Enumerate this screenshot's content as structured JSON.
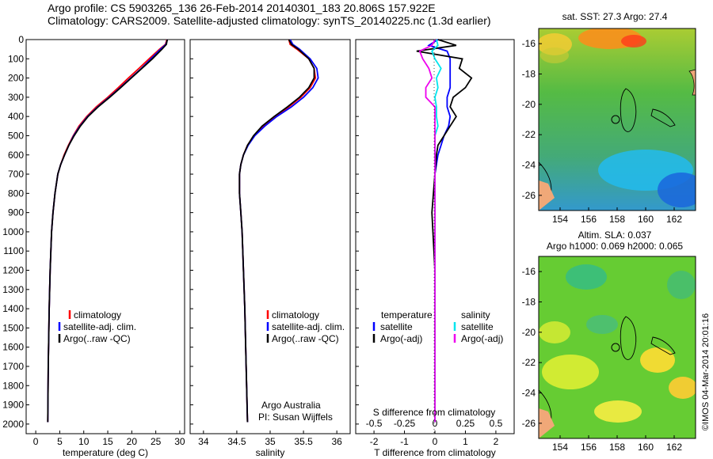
{
  "header": {
    "line1": "Argo profile: CS 5903265_136 26-Feb-2014 20140301_183 20.806S 157.922E",
    "line2": "Climatology: CARS2009. Satellite-adjusted climatology: synTS_20140225.nc (1.3d earlier)"
  },
  "chart_data": [
    {
      "type": "line",
      "id": "temperature_profile",
      "xlabel": "temperature (deg C)",
      "ylabel": "",
      "xlim": [
        -2,
        31
      ],
      "ylim": [
        2050,
        0
      ],
      "xticks": [
        "0",
        "5",
        "10",
        "15",
        "20",
        "25",
        "30"
      ],
      "yticks": [
        "0",
        "100",
        "200",
        "300",
        "400",
        "500",
        "600",
        "700",
        "800",
        "900",
        "1000",
        "1100",
        "1200",
        "1300",
        "1400",
        "1500",
        "1600",
        "1700",
        "1800",
        "1900",
        "2000"
      ],
      "legend": [
        "climatology",
        "satellite-adj. clim.",
        "Argo(..raw -QC)"
      ],
      "series": [
        {
          "name": "climatology",
          "color": "#ff0000",
          "x": [
            27.3,
            27.0,
            25.8,
            23.6,
            21.5,
            19.3,
            17.2,
            15.0,
            12.6,
            10.6,
            9.0,
            7.8,
            6.8,
            5.9,
            5.2,
            4.6,
            4.0,
            3.6,
            3.3,
            3.0,
            2.8,
            2.6,
            2.5
          ],
          "y": [
            0,
            25,
            50,
            100,
            150,
            200,
            250,
            300,
            350,
            400,
            450,
            500,
            550,
            600,
            650,
            700,
            800,
            900,
            1000,
            1200,
            1400,
            1700,
            1990
          ]
        },
        {
          "name": "satellite-adj. clim.",
          "color": "#0000ff",
          "x": [
            27.4,
            27.1,
            26.0,
            24.0,
            22.0,
            19.8,
            17.6,
            15.3,
            12.9,
            10.8,
            9.2,
            7.9,
            6.9,
            6.0,
            5.2,
            4.6,
            4.0,
            3.6,
            3.3,
            3.0,
            2.8,
            2.6,
            2.5
          ],
          "y": [
            0,
            25,
            50,
            100,
            150,
            200,
            250,
            300,
            350,
            400,
            450,
            500,
            550,
            600,
            650,
            700,
            800,
            900,
            1000,
            1200,
            1400,
            1700,
            1990
          ]
        },
        {
          "name": "Argo(..raw -QC)",
          "color": "#000000",
          "x": [
            27.4,
            27.2,
            26.3,
            24.3,
            22.1,
            19.9,
            17.7,
            15.4,
            13.0,
            10.9,
            9.3,
            8.0,
            6.9,
            6.0,
            5.2,
            4.6,
            4.0,
            3.6,
            3.3,
            3.0,
            2.8,
            2.6,
            2.5
          ],
          "y": [
            0,
            25,
            50,
            100,
            150,
            200,
            250,
            300,
            350,
            400,
            450,
            500,
            550,
            600,
            650,
            700,
            800,
            900,
            1000,
            1200,
            1400,
            1700,
            1990
          ]
        }
      ]
    },
    {
      "type": "line",
      "id": "salinity_profile",
      "xlabel": "salinity",
      "xlim": [
        33.8,
        36.2
      ],
      "ylim": [
        2050,
        0
      ],
      "xticks": [
        "34",
        "34.5",
        "35",
        "35.5",
        "36"
      ],
      "legend": [
        "climatology",
        "satellite-adj. clim.",
        "Argo(..raw -QC)"
      ],
      "annotation": [
        "Argo Australia",
        "PI: Susan Wijffels"
      ],
      "series": [
        {
          "name": "climatology",
          "color": "#ff0000",
          "x": [
            35.28,
            35.3,
            35.4,
            35.58,
            35.66,
            35.68,
            35.6,
            35.46,
            35.28,
            35.08,
            34.9,
            34.76,
            34.66,
            34.6,
            34.56,
            34.54,
            34.54,
            34.56,
            34.58,
            34.6,
            34.62,
            34.64,
            34.66
          ],
          "y": [
            0,
            25,
            50,
            100,
            150,
            200,
            250,
            300,
            350,
            400,
            450,
            500,
            550,
            600,
            650,
            700,
            800,
            900,
            1000,
            1200,
            1400,
            1700,
            1990
          ]
        },
        {
          "name": "satellite-adj. clim.",
          "color": "#0000ff",
          "x": [
            35.3,
            35.34,
            35.44,
            35.6,
            35.7,
            35.72,
            35.64,
            35.5,
            35.32,
            35.1,
            34.92,
            34.77,
            34.67,
            34.6,
            34.56,
            34.54,
            34.54,
            34.56,
            34.58,
            34.6,
            34.62,
            34.64,
            34.66
          ],
          "y": [
            0,
            25,
            50,
            100,
            150,
            200,
            250,
            300,
            350,
            400,
            450,
            500,
            550,
            600,
            650,
            700,
            800,
            900,
            1000,
            1200,
            1400,
            1700,
            1990
          ]
        },
        {
          "name": "Argo(..raw -QC)",
          "color": "#000000",
          "x": [
            35.28,
            35.32,
            35.42,
            35.58,
            35.66,
            35.66,
            35.58,
            35.44,
            35.26,
            35.06,
            34.88,
            34.75,
            34.66,
            34.6,
            34.56,
            34.54,
            34.54,
            34.56,
            34.58,
            34.6,
            34.62,
            34.64,
            34.66
          ],
          "y": [
            0,
            25,
            50,
            100,
            150,
            200,
            250,
            300,
            350,
            400,
            450,
            500,
            550,
            600,
            650,
            700,
            800,
            900,
            1000,
            1200,
            1400,
            1700,
            1990
          ]
        }
      ]
    },
    {
      "type": "line",
      "id": "difference_profile",
      "xlabel": "T difference from climatology",
      "xlabel_top": "S difference from climatology",
      "xlim": [
        -2.6,
        2.6
      ],
      "ylim": [
        2050,
        0
      ],
      "xticks_T": [
        "-2",
        "-1",
        "0",
        "1",
        "2"
      ],
      "xticks_S": [
        "-0.5",
        "-0.25",
        "0",
        "0.25",
        "0.5"
      ],
      "legend_T_title": "temperature",
      "legend_S_title": "salinity",
      "legend": [
        "satellite",
        "Argo(-adj)",
        "satellite",
        "Argo(-adj)"
      ],
      "series": [
        {
          "name": "T satellite",
          "color": "#0000ff",
          "x": [
            0.1,
            -0.2,
            0.4,
            0.5,
            0.5,
            0.5,
            0.5,
            0.4,
            0.4,
            0.5,
            0.45,
            0.3,
            0.2,
            0.1,
            0.0,
            0.0,
            0.0,
            0.0,
            0.0
          ],
          "y": [
            0,
            30,
            60,
            100,
            150,
            200,
            250,
            300,
            350,
            400,
            450,
            500,
            550,
            600,
            700,
            900,
            1200,
            1600,
            1990
          ]
        },
        {
          "name": "T Argo(-adj)",
          "color": "#000000",
          "x": [
            0.1,
            0.7,
            -0.6,
            0.9,
            0.8,
            1.2,
            1.0,
            0.6,
            0.5,
            0.7,
            0.5,
            0.3,
            0.1,
            0.05,
            0.0,
            -0.1,
            0.0,
            0.0,
            0.0
          ],
          "y": [
            0,
            30,
            60,
            100,
            150,
            200,
            250,
            300,
            350,
            400,
            450,
            500,
            550,
            600,
            700,
            900,
            1200,
            1600,
            1990
          ]
        },
        {
          "name": "S satellite",
          "color": "#00e5ee",
          "x": [
            0.05,
            0.1,
            -0.1,
            0.0,
            0.2,
            0.05,
            0.1,
            0.0,
            0.05,
            0.05,
            0.1,
            0.0,
            0.0,
            0.0,
            0.0,
            0.0,
            0.0,
            0.0,
            0.0
          ],
          "y": [
            0,
            30,
            60,
            100,
            150,
            200,
            250,
            300,
            350,
            400,
            450,
            500,
            550,
            600,
            700,
            900,
            1200,
            1600,
            1990
          ]
        },
        {
          "name": "S Argo(-adj)",
          "color": "#ee00ee",
          "x": [
            0.0,
            -0.1,
            -0.5,
            -0.4,
            -0.2,
            -0.1,
            -0.3,
            -0.3,
            0.0,
            0.0,
            0.0,
            0.0,
            0.0,
            0.0,
            0.0,
            0.0,
            0.0,
            0.0,
            0.0
          ],
          "y": [
            0,
            30,
            60,
            100,
            150,
            200,
            250,
            300,
            350,
            400,
            450,
            500,
            550,
            600,
            700,
            900,
            1200,
            1600,
            1990
          ]
        }
      ]
    },
    {
      "type": "heatmap",
      "id": "sst_map",
      "title": "sat. SST: 27.3 Argo: 27.4",
      "xlim": [
        152.5,
        163.5
      ],
      "ylim": [
        -27,
        -15
      ],
      "xticks": [
        "154",
        "156",
        "158",
        "160",
        "162"
      ],
      "yticks": [
        "-16",
        "-18",
        "-20",
        "-22",
        "-24",
        "-26"
      ],
      "argo_position": [
        157.922,
        -20.806
      ]
    },
    {
      "type": "heatmap",
      "id": "sla_map",
      "title_line1": "Altim. SLA: 0.037",
      "title_line2": "Argo h1000: 0.069 h2000: 0.065",
      "xlim": [
        152.5,
        163.5
      ],
      "ylim": [
        -27,
        -15
      ],
      "xticks": [
        "154",
        "156",
        "158",
        "160",
        "162"
      ],
      "yticks": [
        "-16",
        "-18",
        "-20",
        "-22",
        "-24",
        "-26"
      ],
      "argo_position": [
        157.922,
        -20.806
      ]
    }
  ],
  "watermark": "©IMOS 04-Mar-2014 20:01:16",
  "colors": {
    "climatology": "#ff0000",
    "satellite_adj": "#0000ff",
    "argo": "#000000",
    "s_satellite": "#00e5ee",
    "s_argo": "#ee00ee"
  }
}
